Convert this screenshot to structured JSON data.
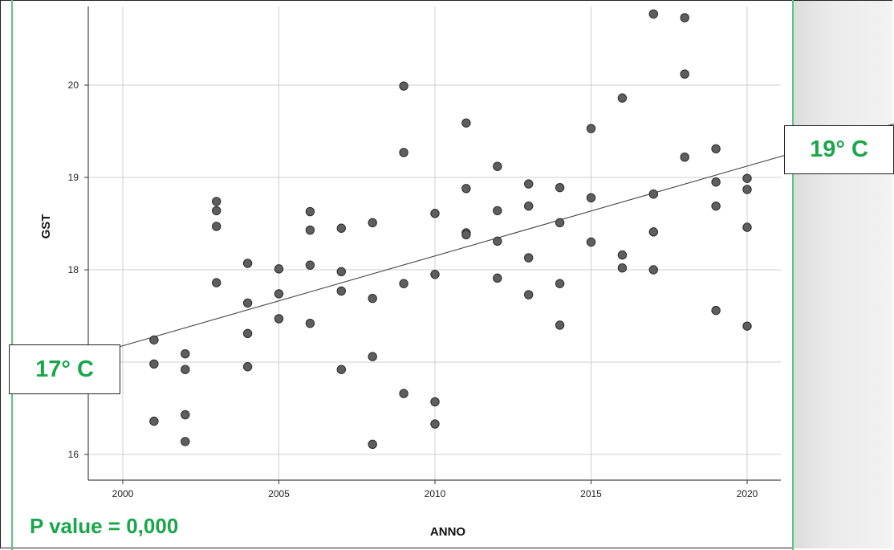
{
  "chart_data": {
    "type": "scatter",
    "xlabel": "ANNO",
    "ylabel": "GST",
    "xlim": [
      1999.0,
      2021.0
    ],
    "ylim": [
      15.7,
      20.9
    ],
    "xticks": [
      "2000",
      "2005",
      "2010",
      "2015",
      "2020"
    ],
    "yticks": [
      "16",
      "18",
      "19",
      "20"
    ],
    "grid": true,
    "points": [
      [
        2001,
        17.24
      ],
      [
        2001,
        16.98
      ],
      [
        2001,
        16.36
      ],
      [
        2002,
        17.09
      ],
      [
        2002,
        16.92
      ],
      [
        2002,
        16.43
      ],
      [
        2002,
        16.14
      ],
      [
        2003,
        18.74
      ],
      [
        2003,
        18.64
      ],
      [
        2003,
        18.47
      ],
      [
        2003,
        17.86
      ],
      [
        2004,
        18.07
      ],
      [
        2004,
        17.64
      ],
      [
        2004,
        17.31
      ],
      [
        2004,
        16.95
      ],
      [
        2005,
        18.01
      ],
      [
        2005,
        17.74
      ],
      [
        2005,
        17.47
      ],
      [
        2006,
        18.63
      ],
      [
        2006,
        18.43
      ],
      [
        2006,
        18.05
      ],
      [
        2006,
        17.42
      ],
      [
        2007,
        18.45
      ],
      [
        2007,
        17.98
      ],
      [
        2007,
        17.77
      ],
      [
        2007,
        16.92
      ],
      [
        2008,
        18.51
      ],
      [
        2008,
        17.69
      ],
      [
        2008,
        17.06
      ],
      [
        2008,
        16.11
      ],
      [
        2009,
        19.99
      ],
      [
        2009,
        19.27
      ],
      [
        2009,
        17.85
      ],
      [
        2009,
        16.66
      ],
      [
        2010,
        18.61
      ],
      [
        2010,
        17.95
      ],
      [
        2010,
        16.57
      ],
      [
        2010,
        16.33
      ],
      [
        2011,
        19.59
      ],
      [
        2011,
        18.88
      ],
      [
        2011,
        18.4
      ],
      [
        2011,
        18.38
      ],
      [
        2012,
        19.12
      ],
      [
        2012,
        18.64
      ],
      [
        2012,
        18.31
      ],
      [
        2012,
        17.91
      ],
      [
        2013,
        18.93
      ],
      [
        2013,
        18.69
      ],
      [
        2013,
        18.13
      ],
      [
        2013,
        17.73
      ],
      [
        2014,
        18.89
      ],
      [
        2014,
        18.51
      ],
      [
        2014,
        17.85
      ],
      [
        2014,
        17.4
      ],
      [
        2015,
        19.53
      ],
      [
        2015,
        18.78
      ],
      [
        2015,
        18.3
      ],
      [
        2016,
        19.86
      ],
      [
        2016,
        18.16
      ],
      [
        2016,
        18.02
      ],
      [
        2017,
        20.77
      ],
      [
        2017,
        18.82
      ],
      [
        2017,
        18.41
      ],
      [
        2017,
        18.0
      ],
      [
        2018,
        20.73
      ],
      [
        2018,
        20.12
      ],
      [
        2018,
        19.22
      ],
      [
        2019,
        19.31
      ],
      [
        2019,
        18.95
      ],
      [
        2019,
        18.69
      ],
      [
        2019,
        17.56
      ],
      [
        2020,
        18.99
      ],
      [
        2020,
        18.87
      ],
      [
        2020,
        18.46
      ],
      [
        2020,
        17.39
      ]
    ],
    "fit_line": {
      "x": [
        1999.0,
        2021.0
      ],
      "y": [
        17.08,
        19.22
      ]
    }
  },
  "annotations": {
    "start_temp": "17° C",
    "end_temp": "19° C",
    "p_value": "P value = 0,000"
  },
  "colors": {
    "point": "#5e5e5e",
    "accent_green": "#1aa64a"
  }
}
